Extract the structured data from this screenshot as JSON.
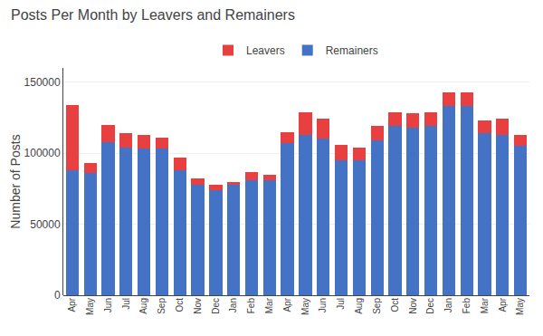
{
  "chart_data": {
    "type": "bar",
    "title": "Posts Per Month by Leavers and Remainers",
    "ylabel": "Number of Posts",
    "categories": [
      "Apr",
      "May",
      "Jun",
      "Jul",
      "Aug",
      "Sep",
      "Oct",
      "Nov",
      "Dec",
      "Jan",
      "Feb",
      "Mar",
      "Apr",
      "May",
      "Jun",
      "Jul",
      "Aug",
      "Sep",
      "Oct",
      "Nov",
      "Dec",
      "Jan",
      "Feb",
      "Mar",
      "Apr",
      "May"
    ],
    "series": [
      {
        "name": "Remainers",
        "color": "#4472C4",
        "values": [
          88000,
          86000,
          108000,
          104000,
          103000,
          103000,
          88000,
          78000,
          74000,
          78000,
          81000,
          81000,
          107000,
          113000,
          110000,
          95000,
          95000,
          109000,
          119000,
          118000,
          119000,
          133000,
          133000,
          114000,
          113000,
          105000
        ]
      },
      {
        "name": "Leavers",
        "color": "#E84040",
        "values": [
          46000,
          7000,
          12000,
          10000,
          10000,
          8000,
          9000,
          4000,
          4000,
          2000,
          6000,
          4000,
          8000,
          16000,
          14000,
          11000,
          9000,
          10000,
          10000,
          10000,
          10000,
          10000,
          10000,
          9000,
          11000,
          8000
        ]
      }
    ],
    "stacked": true,
    "ylim": [
      0,
      160000
    ],
    "yticks": [
      0,
      50000,
      100000,
      150000
    ],
    "grid": true,
    "legend": "top"
  }
}
